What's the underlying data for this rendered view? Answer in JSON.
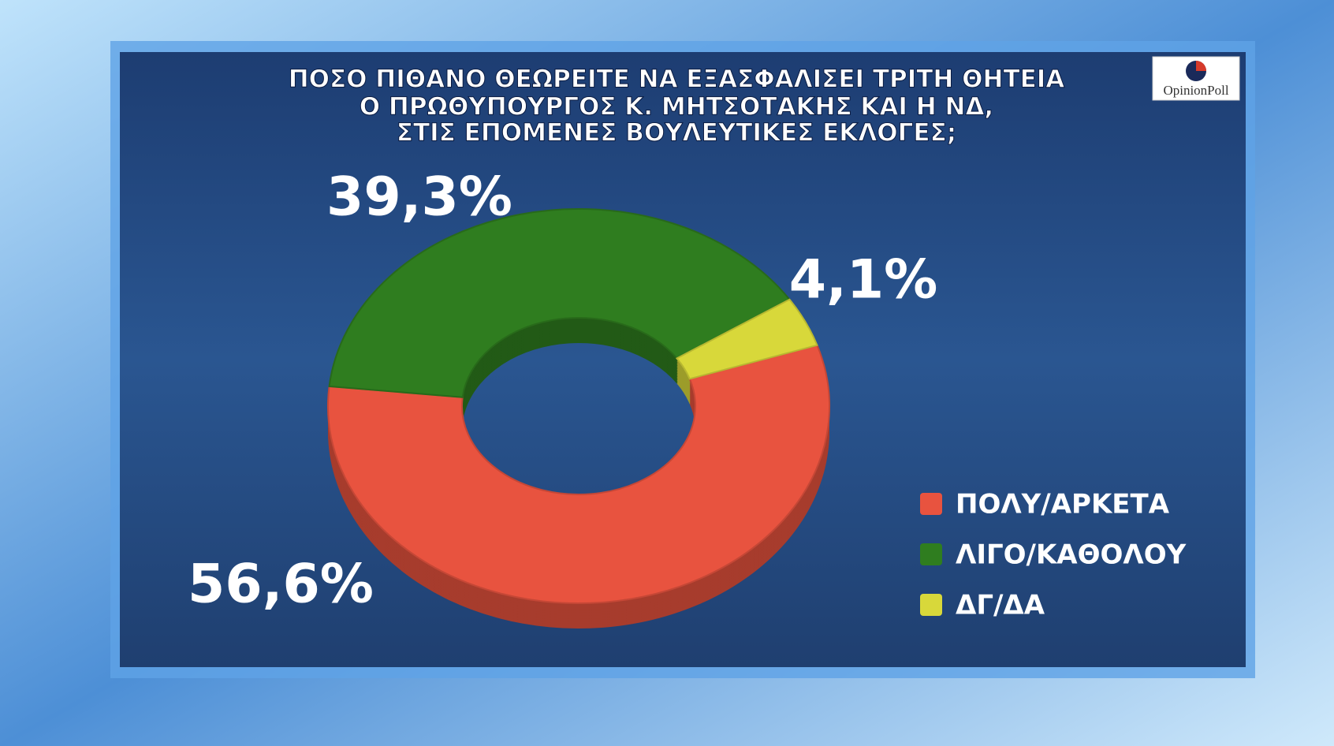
{
  "chart_data": {
    "type": "pie",
    "title": [
      "ΠΟΣΟ ΠΙΘΑΝΟ ΘΕΩΡΕΙΤΕ ΝΑ ΕΞΑΣΦΑΛΙΣΕΙ ΤΡΙΤΗ ΘΗΤΕΙΑ",
      "Ο ΠΡΩΘΥΠΟΥΡΓΟΣ Κ. ΜΗΤΣΟΤΑΚΗΣ ΚΑΙ Η ΝΔ,",
      "ΣΤΙΣ ΕΠΟΜΕΝΕΣ ΒΟΥΛΕΥΤΙΚΕΣ ΕΚΛΟΓΕΣ;"
    ],
    "source_logo": "OpinionPoll",
    "categories": [
      "ΠΟΛΥ/ΑΡΚΕΤΑ",
      "ΛΙΓΟ/ΚΑΘΟΛΟΥ",
      "ΔΓ/ΔΑ"
    ],
    "values": [
      56.6,
      39.3,
      4.1
    ],
    "value_labels": [
      "56,6%",
      "39,3%",
      "4,1%"
    ],
    "colors": [
      "#e8533f",
      "#2f7d1f",
      "#d8d83a"
    ],
    "donut": true
  }
}
